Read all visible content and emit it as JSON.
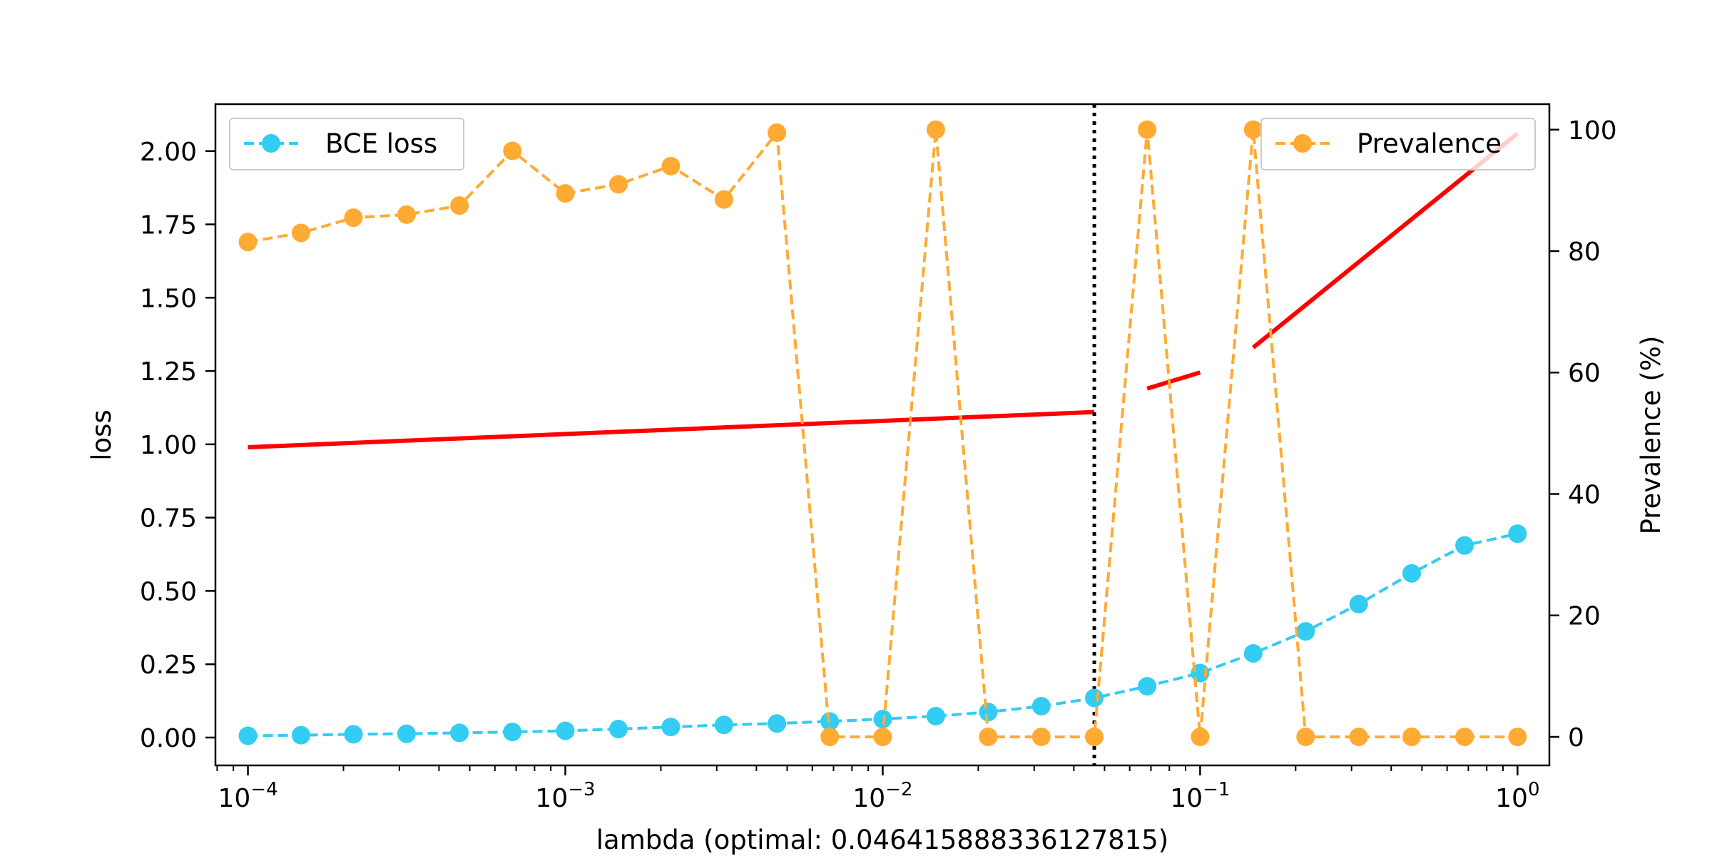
{
  "chart_data": {
    "type": "line",
    "title": "",
    "xlabel": "lambda (optimal: 0.046415888336127815)",
    "ylabel_left": "loss",
    "ylabel_right": "Prevalence (%)",
    "x_scale": "log",
    "xlim": [
      7.9e-05,
      1.26
    ],
    "ylim_left": [
      -0.095,
      2.16
    ],
    "ylim_right": [
      -4.7,
      104.2
    ],
    "x_ticks": [
      {
        "value": 0.0001,
        "base": "10",
        "exp": "−4"
      },
      {
        "value": 0.001,
        "base": "10",
        "exp": "−3"
      },
      {
        "value": 0.01,
        "base": "10",
        "exp": "−2"
      },
      {
        "value": 0.1,
        "base": "10",
        "exp": "−1"
      },
      {
        "value": 1,
        "base": "10",
        "exp": "0"
      }
    ],
    "y_ticks_left": [
      "0.00",
      "0.25",
      "0.50",
      "0.75",
      "1.00",
      "1.25",
      "1.50",
      "1.75",
      "2.00"
    ],
    "y_ticks_right": [
      "0",
      "20",
      "40",
      "60",
      "80",
      "100"
    ],
    "x": [
      0.0001,
      0.000147,
      0.000215,
      0.000316,
      0.000464,
      0.000681,
      0.001,
      0.00147,
      0.00215,
      0.00316,
      0.00464,
      0.00681,
      0.01,
      0.0147,
      0.0215,
      0.0316,
      0.0464,
      0.0681,
      0.1,
      0.147,
      0.215,
      0.316,
      0.464,
      0.681,
      1.0
    ],
    "series": [
      {
        "name": "BCE loss",
        "axis": "left",
        "color": "#33ccf2",
        "style": "dashed-markers",
        "values": [
          0.006,
          0.008,
          0.011,
          0.013,
          0.016,
          0.019,
          0.023,
          0.029,
          0.036,
          0.043,
          0.048,
          0.055,
          0.063,
          0.073,
          0.087,
          0.107,
          0.135,
          0.175,
          0.22,
          0.287,
          0.362,
          0.455,
          0.56,
          0.655,
          0.695
        ]
      },
      {
        "name": "Prevalence",
        "axis": "right",
        "color": "#ffaa33",
        "style": "dashed-markers",
        "values": [
          81.5,
          83,
          85.5,
          86,
          87.5,
          96.5,
          89.5,
          91,
          94,
          88.5,
          99.5,
          0,
          0,
          100,
          0,
          0,
          0,
          100,
          0,
          100,
          0,
          0,
          0,
          0,
          0
        ]
      }
    ],
    "annotations": {
      "optimal_lambda": 0.046415888336127815,
      "vline_style": "dotted",
      "vline_color": "#000000",
      "trend_color": "#ff0000",
      "trend_segments": [
        {
          "x": [
            0.0001,
            0.046415888336127815
          ],
          "y": [
            0.99,
            1.11
          ]
        },
        {
          "x": [
            0.0681,
            0.1
          ],
          "y": [
            1.19,
            1.245
          ]
        },
        {
          "x": [
            0.147,
            1.0
          ],
          "y": [
            1.33,
            2.06
          ]
        }
      ]
    },
    "legend": {
      "left": "upper-left",
      "right": "upper-right"
    },
    "grid": false
  }
}
